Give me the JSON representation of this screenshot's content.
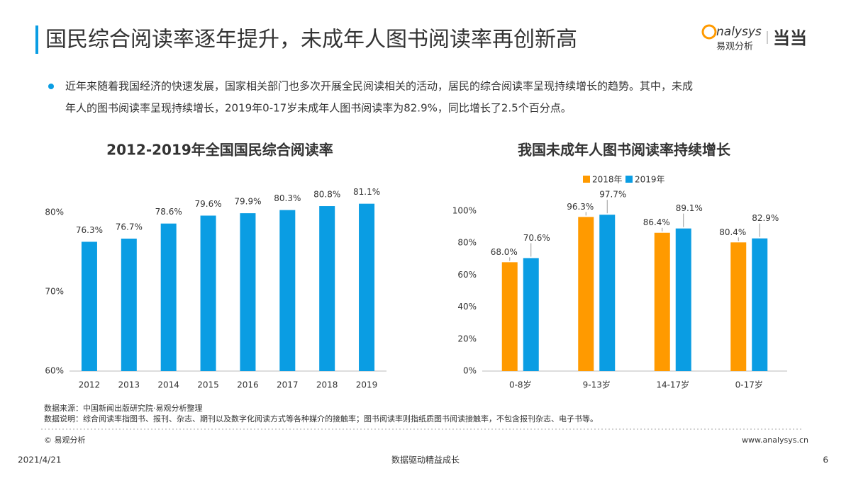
{
  "header": {
    "title": "国民综合阅读率逐年提升，未成年人图书阅读率再创新高",
    "logo_text": "nalysys",
    "logo_sub": "易观分析",
    "logo_partner": "当当"
  },
  "paragraph": [
    "近年来随着我国经济的快速发展，国家相关部门也多次开展全民阅读相关的活动，居民的综合阅读率呈现持续增长的趋势。其中，未成",
    "年人的图书阅读率呈现持续增长，2019年0-17岁未成年人图书阅读率为82.9%，同比增长了2.5个百分点。"
  ],
  "chart_data": [
    {
      "type": "bar",
      "title": "2012-2019年全国国民综合阅读率",
      "categories": [
        "2012",
        "2013",
        "2014",
        "2015",
        "2016",
        "2017",
        "2018",
        "2019"
      ],
      "values": [
        76.3,
        76.7,
        78.6,
        79.6,
        79.9,
        80.3,
        80.8,
        81.1
      ],
      "value_labels": [
        "76.3%",
        "76.7%",
        "78.6%",
        "79.6%",
        "79.9%",
        "80.3%",
        "80.8%",
        "81.1%"
      ],
      "color": "#0a9de3",
      "ylim": [
        60,
        82
      ],
      "yticks": [
        {
          "value": 60,
          "label": "60%"
        },
        {
          "value": 70,
          "label": "70%"
        },
        {
          "value": 80,
          "label": "80%"
        }
      ]
    },
    {
      "type": "grouped_bar",
      "title": "我国未成年人图书阅读率持续增长",
      "categories": [
        "0-8岁",
        "9-13岁",
        "14-17岁",
        "0-17岁"
      ],
      "series": [
        {
          "name": "2018年",
          "color": "#ff9a00",
          "values": [
            68.0,
            96.3,
            86.4,
            80.4
          ],
          "value_labels": [
            "68.0%",
            "96.3%",
            "86.4%",
            "80.4%"
          ]
        },
        {
          "name": "2019年",
          "color": "#0a9de3",
          "values": [
            70.6,
            97.7,
            89.1,
            82.9
          ],
          "value_labels": [
            "70.6%",
            "97.7%",
            "89.1%",
            "82.9%"
          ]
        }
      ],
      "ylim": [
        0,
        100
      ],
      "yticks": [
        {
          "value": 0,
          "label": "0%"
        },
        {
          "value": 20,
          "label": "20%"
        },
        {
          "value": 40,
          "label": "40%"
        },
        {
          "value": 60,
          "label": "60%"
        },
        {
          "value": 80,
          "label": "80%"
        },
        {
          "value": 100,
          "label": "100%"
        }
      ],
      "legend": "top"
    }
  ],
  "footer": {
    "source": "数据来源：中国新闻出版研究院·易观分析整理",
    "note": "数据说明：综合阅读率指图书、报刊、杂志、期刊以及数字化阅读方式等各种媒介的接触率；图书阅读率则指纸质图书阅读接触率，不包含报刊杂志、电子书等。",
    "copyright": "© 易观分析",
    "website": "www.analysys.cn",
    "date": "2021/4/21",
    "slogan": "数据驱动精益成长",
    "page": "6"
  }
}
